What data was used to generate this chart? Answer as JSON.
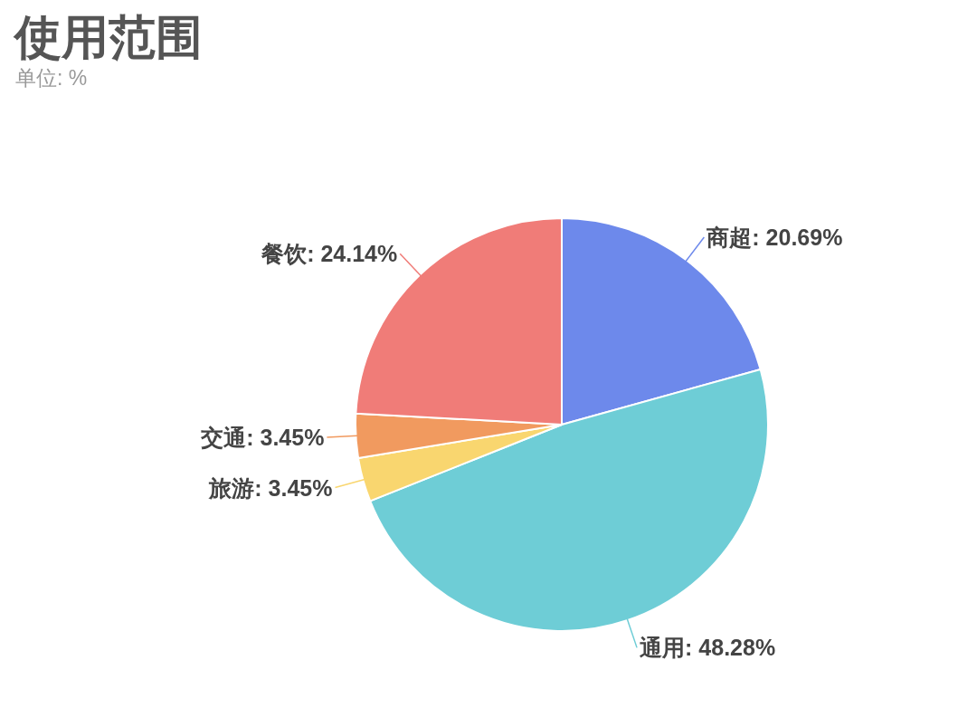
{
  "chart_data": {
    "type": "pie",
    "title": "使用范围",
    "subtitle": "单位: %",
    "categories": [
      "商超",
      "通用",
      "旅游",
      "交通",
      "餐饮"
    ],
    "values": [
      20.69,
      48.28,
      3.45,
      3.45,
      24.14
    ],
    "colors": [
      "#6d89eb",
      "#6ecdd6",
      "#f9d66f",
      "#f19a5f",
      "#f07c78"
    ],
    "value_labels": [
      "20.69%",
      "48.28%",
      "3.45%",
      "3.45%",
      "24.14%"
    ]
  }
}
